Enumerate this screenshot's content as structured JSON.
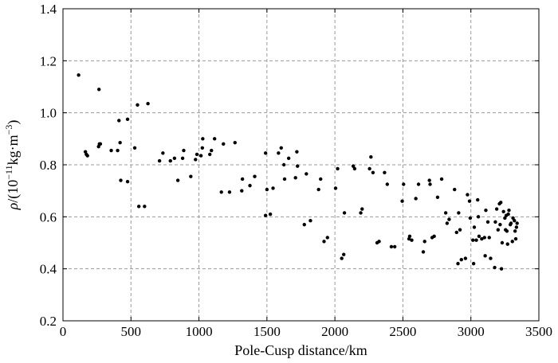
{
  "chart_data": {
    "type": "scatter",
    "title": "",
    "xlabel": "Pole-Cusp distance/km",
    "ylabel": {
      "symbol": "ρ",
      "unit_open": "/(10",
      "exp1": "−11",
      "mid": "kg·m",
      "exp2": "−3",
      "close": ")"
    },
    "xlim": [
      0,
      3500
    ],
    "ylim": [
      0.2,
      1.4
    ],
    "xticks": [
      0,
      500,
      1000,
      1500,
      2000,
      2500,
      3000,
      3500
    ],
    "yticks": [
      0.2,
      0.4,
      0.6,
      0.8,
      1.0,
      1.2,
      1.4
    ],
    "ytick_labels": [
      "0.2",
      "0.4",
      "0.6",
      "0.8",
      "1.0",
      "1.2",
      "1.4"
    ],
    "grid": true,
    "marker_color": "#000000",
    "points": [
      [
        115,
        1.145
      ],
      [
        165,
        0.85
      ],
      [
        172,
        0.84
      ],
      [
        180,
        0.835
      ],
      [
        262,
        0.87
      ],
      [
        268,
        0.88
      ],
      [
        275,
        0.88
      ],
      [
        265,
        1.09
      ],
      [
        355,
        0.855
      ],
      [
        402,
        0.855
      ],
      [
        412,
        0.97
      ],
      [
        420,
        0.885
      ],
      [
        425,
        0.74
      ],
      [
        475,
        0.975
      ],
      [
        475,
        0.735
      ],
      [
        528,
        0.865
      ],
      [
        548,
        1.03
      ],
      [
        558,
        0.64
      ],
      [
        600,
        0.64
      ],
      [
        625,
        1.035
      ],
      [
        710,
        0.815
      ],
      [
        735,
        0.845
      ],
      [
        790,
        0.815
      ],
      [
        820,
        0.825
      ],
      [
        845,
        0.74
      ],
      [
        880,
        0.825
      ],
      [
        888,
        0.855
      ],
      [
        940,
        0.755
      ],
      [
        975,
        0.82
      ],
      [
        985,
        0.84
      ],
      [
        1015,
        0.835
      ],
      [
        1025,
        0.865
      ],
      [
        1028,
        0.9
      ],
      [
        1080,
        0.84
      ],
      [
        1092,
        0.855
      ],
      [
        1115,
        0.9
      ],
      [
        1165,
        0.695
      ],
      [
        1180,
        0.88
      ],
      [
        1225,
        0.695
      ],
      [
        1265,
        0.885
      ],
      [
        1315,
        0.7
      ],
      [
        1320,
        0.745
      ],
      [
        1375,
        0.72
      ],
      [
        1410,
        0.755
      ],
      [
        1490,
        0.845
      ],
      [
        1490,
        0.605
      ],
      [
        1500,
        0.705
      ],
      [
        1525,
        0.61
      ],
      [
        1545,
        0.71
      ],
      [
        1585,
        0.845
      ],
      [
        1605,
        0.865
      ],
      [
        1625,
        0.8
      ],
      [
        1630,
        0.745
      ],
      [
        1660,
        0.825
      ],
      [
        1710,
        0.75
      ],
      [
        1720,
        0.85
      ],
      [
        1725,
        0.795
      ],
      [
        1775,
        0.57
      ],
      [
        1790,
        0.765
      ],
      [
        1820,
        0.585
      ],
      [
        1880,
        0.705
      ],
      [
        1895,
        0.745
      ],
      [
        1920,
        0.505
      ],
      [
        1945,
        0.52
      ],
      [
        2005,
        0.71
      ],
      [
        2020,
        0.785
      ],
      [
        2050,
        0.44
      ],
      [
        2065,
        0.455
      ],
      [
        2070,
        0.615
      ],
      [
        2135,
        0.795
      ],
      [
        2145,
        0.785
      ],
      [
        2190,
        0.615
      ],
      [
        2200,
        0.63
      ],
      [
        2255,
        0.785
      ],
      [
        2265,
        0.83
      ],
      [
        2280,
        0.77
      ],
      [
        2310,
        0.5
      ],
      [
        2325,
        0.505
      ],
      [
        2365,
        0.77
      ],
      [
        2385,
        0.725
      ],
      [
        2415,
        0.485
      ],
      [
        2440,
        0.485
      ],
      [
        2495,
        0.66
      ],
      [
        2505,
        0.725
      ],
      [
        2545,
        0.515
      ],
      [
        2550,
        0.525
      ],
      [
        2565,
        0.51
      ],
      [
        2595,
        0.67
      ],
      [
        2615,
        0.725
      ],
      [
        2650,
        0.465
      ],
      [
        2660,
        0.505
      ],
      [
        2695,
        0.74
      ],
      [
        2700,
        0.725
      ],
      [
        2715,
        0.52
      ],
      [
        2730,
        0.525
      ],
      [
        2755,
        0.675
      ],
      [
        2785,
        0.745
      ],
      [
        2815,
        0.615
      ],
      [
        2825,
        0.575
      ],
      [
        2840,
        0.59
      ],
      [
        2880,
        0.705
      ],
      [
        2895,
        0.54
      ],
      [
        2905,
        0.42
      ],
      [
        2910,
        0.615
      ],
      [
        2920,
        0.55
      ],
      [
        2930,
        0.435
      ],
      [
        2960,
        0.44
      ],
      [
        2975,
        0.685
      ],
      [
        2990,
        0.66
      ],
      [
        2995,
        0.595
      ],
      [
        3015,
        0.51
      ],
      [
        3020,
        0.42
      ],
      [
        3025,
        0.56
      ],
      [
        3040,
        0.51
      ],
      [
        3050,
        0.665
      ],
      [
        3055,
        0.6
      ],
      [
        3060,
        0.525
      ],
      [
        3080,
        0.515
      ],
      [
        3100,
        0.52
      ],
      [
        3105,
        0.45
      ],
      [
        3110,
        0.625
      ],
      [
        3125,
        0.58
      ],
      [
        3135,
        0.52
      ],
      [
        3145,
        0.44
      ],
      [
        3175,
        0.405
      ],
      [
        3180,
        0.58
      ],
      [
        3190,
        0.63
      ],
      [
        3200,
        0.55
      ],
      [
        3210,
        0.65
      ],
      [
        3215,
        0.57
      ],
      [
        3220,
        0.655
      ],
      [
        3225,
        0.4
      ],
      [
        3230,
        0.5
      ],
      [
        3240,
        0.62
      ],
      [
        3250,
        0.595
      ],
      [
        3255,
        0.55
      ],
      [
        3260,
        0.605
      ],
      [
        3265,
        0.545
      ],
      [
        3270,
        0.495
      ],
      [
        3275,
        0.61
      ],
      [
        3280,
        0.625
      ],
      [
        3290,
        0.57
      ],
      [
        3295,
        0.575
      ],
      [
        3305,
        0.505
      ],
      [
        3310,
        0.595
      ],
      [
        3320,
        0.585
      ],
      [
        3325,
        0.545
      ],
      [
        3330,
        0.515
      ],
      [
        3335,
        0.56
      ],
      [
        3340,
        0.575
      ]
    ]
  }
}
